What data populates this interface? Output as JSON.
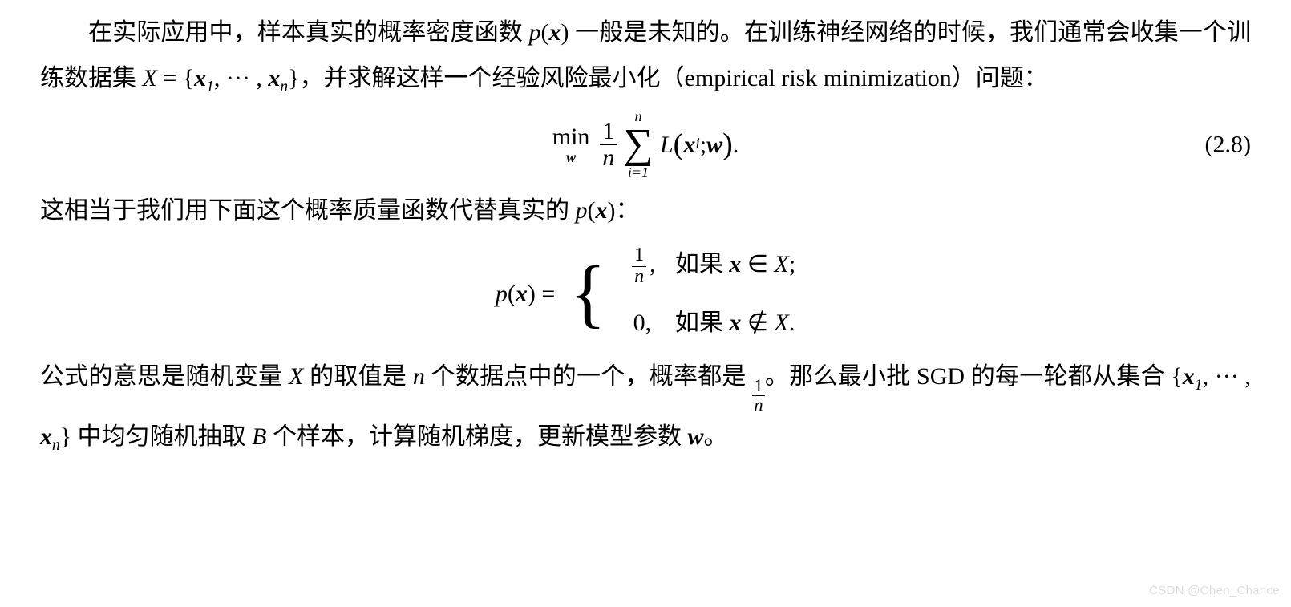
{
  "text": {
    "p1_pre": "在实际应用中，样本真实的概率密度函数 ",
    "p1_px": "p",
    "p1_x": "x",
    "p1_mid": " 一般是未知的。在训练神经网络的时候，我们通常会收集一个训练数据集 ",
    "calX": "X",
    "set_open": " = {",
    "x_sym": "x",
    "one": "1",
    "dots": ", ··· ,",
    "n": "n",
    "set_close": "}",
    "p1_tail": "，并求解这样一个经验风险最小化（empirical risk minimization）问题：",
    "min": "min",
    "w": "w",
    "sum_top": "n",
    "sigma": "∑",
    "sum_bot": "i=1",
    "L": "L",
    "i": "i",
    "semi": "; ",
    "period": ".",
    "eqnum": "(2.8)",
    "p2_pre": "这相当于我们用下面这个概率质量函数代替真实的 ",
    "colon": "：",
    "eq_eq": "  =  ",
    "case_if": "如果 ",
    "in": " ∈ ",
    "notin": " ∉ ",
    "semi2": ";",
    "period2": ".",
    "zero": "0,",
    "comma": ",",
    "p3_a": "公式的意思是随机变量 ",
    "X": "X",
    "p3_b": " 的取值是 ",
    "p3_c": " 个数据点中的一个，概率都是 ",
    "p3_d": "。那么最小批 SGD 的每一轮都从集合 {",
    "p3_e": "} 中均匀随机抽取 ",
    "B": "B",
    "p3_f": " 个样本，计算随机梯度，更新模型参数 ",
    "p3_g": "。"
  },
  "watermark": "CSDN @Chen_Chance",
  "style": {
    "font_size_body": 30,
    "font_size_sigma": 52,
    "font_size_sub": 18,
    "color_text": "#000000",
    "color_bg": "#ffffff",
    "color_watermark": "#dcdcdc"
  }
}
